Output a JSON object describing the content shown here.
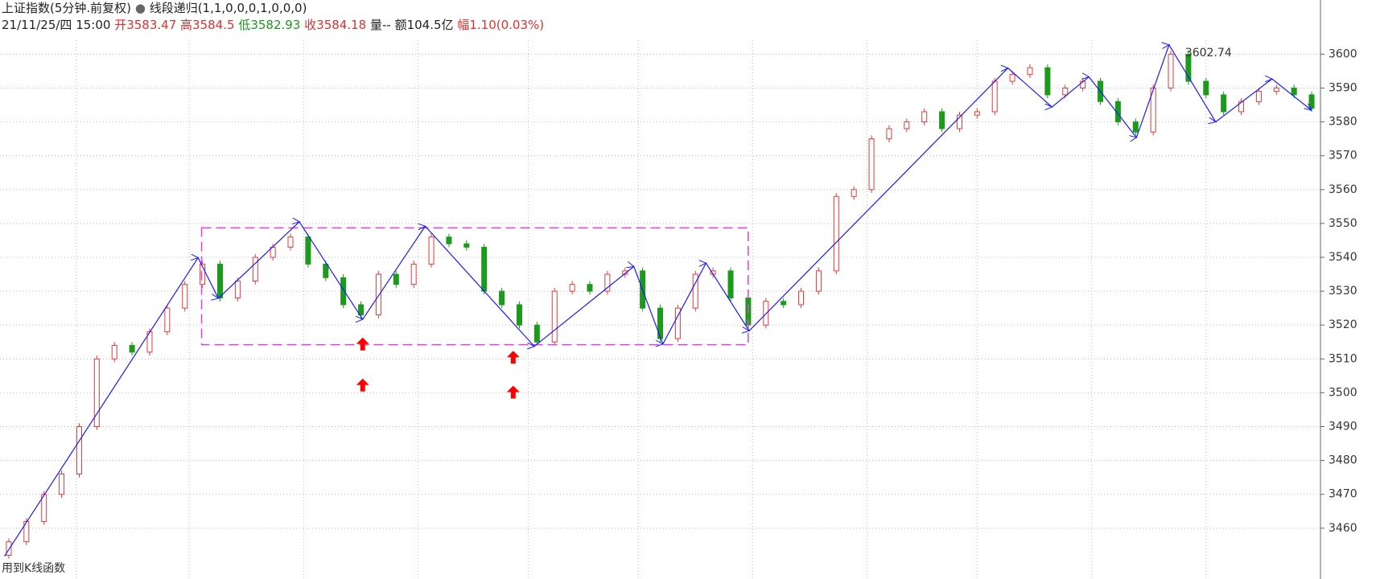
{
  "chart_data": {
    "type": "candlestick",
    "title": "上证指数(5分钟.前复权)",
    "indicator": "线段递归(1,1,0,0,0,1,0,0,0)",
    "info": {
      "datetime": "21/11/25/四 15:00",
      "open_label": "开",
      "open": 3583.47,
      "high_label": "高",
      "high": 3584.5,
      "low_label": "低",
      "low": 3582.93,
      "close_label": "收",
      "close": 3584.18,
      "volume": "量--",
      "amount": "额104.5亿",
      "change_label": "幅",
      "change": "1.10(0.03%)"
    },
    "bottom_note": "用到K线函数",
    "xlim": [
      0,
      300
    ],
    "ylim": [
      3445,
      3616
    ],
    "yticks": [
      3460,
      3470,
      3480,
      3490,
      3500,
      3510,
      3520,
      3530,
      3540,
      3550,
      3560,
      3570,
      3580,
      3590,
      3600
    ],
    "grid": true,
    "up_color": "#e8393a",
    "down_color": "#1c9a1c",
    "x": [
      2,
      6,
      10,
      14,
      18,
      22,
      26,
      30,
      34,
      38,
      42,
      46,
      50,
      54,
      58,
      62,
      66,
      70,
      74,
      78,
      82,
      86,
      90,
      94,
      98,
      102,
      106,
      110,
      114,
      118,
      122,
      126,
      130,
      134,
      138,
      142,
      146,
      150,
      154,
      158,
      162,
      166,
      170,
      174,
      178,
      182,
      186,
      190,
      194,
      198,
      202,
      206,
      210,
      214,
      218,
      222,
      226,
      230,
      234,
      238,
      242,
      246,
      250,
      254,
      258,
      262,
      266,
      270,
      274,
      278,
      282,
      286,
      290,
      294,
      298
    ],
    "open": [
      3452,
      3456,
      3462,
      3470,
      3476,
      3490,
      3510,
      3514,
      3512,
      3518,
      3525,
      3532,
      3538,
      3528,
      3533,
      3540,
      3543,
      3546,
      3538,
      3534,
      3526,
      3523,
      3535,
      3532,
      3538,
      3546,
      3544,
      3543,
      3530,
      3526,
      3520,
      3515,
      3530,
      3532,
      3530,
      3535,
      3536,
      3525,
      3516,
      3525,
      3535,
      3536,
      3528,
      3520,
      3527,
      3526,
      3530,
      3536,
      3558,
      3560,
      3575,
      3578,
      3580,
      3583,
      3578,
      3582,
      3583,
      3592,
      3594,
      3596,
      3588,
      3590,
      3592,
      3586,
      3580,
      3577,
      3590,
      3600,
      3592,
      3588,
      3583,
      3586,
      3589,
      3590,
      3588
    ],
    "high": [
      3457,
      3463,
      3471,
      3477,
      3491,
      3511,
      3515,
      3515,
      3519,
      3526,
      3533,
      3539,
      3539,
      3534,
      3541,
      3544,
      3547,
      3547,
      3539,
      3535,
      3527,
      3536,
      3536,
      3539,
      3547,
      3547,
      3545,
      3544,
      3531,
      3527,
      3521,
      3531,
      3533,
      3533,
      3536,
      3537,
      3537,
      3526,
      3526,
      3536,
      3537,
      3537,
      3529,
      3528,
      3528,
      3531,
      3537,
      3559,
      3561,
      3576,
      3579,
      3581,
      3584,
      3584,
      3583,
      3584,
      3593,
      3595,
      3597,
      3597,
      3591,
      3593,
      3593,
      3587,
      3581,
      3591,
      3601,
      3601,
      3593,
      3589,
      3587,
      3590,
      3591,
      3591,
      3589
    ],
    "low": [
      3451,
      3455,
      3461,
      3469,
      3475,
      3489,
      3509,
      3511,
      3511,
      3517,
      3524,
      3531,
      3527,
      3527,
      3532,
      3539,
      3542,
      3537,
      3533,
      3525,
      3522,
      3522,
      3531,
      3531,
      3537,
      3543,
      3542,
      3529,
      3525,
      3519,
      3514,
      3514,
      3529,
      3529,
      3529,
      3534,
      3524,
      3515,
      3515,
      3524,
      3534,
      3527,
      3519,
      3519,
      3525,
      3525,
      3529,
      3535,
      3557,
      3559,
      3574,
      3577,
      3579,
      3577,
      3577,
      3581,
      3582,
      3591,
      3593,
      3587,
      3587,
      3589,
      3585,
      3579,
      3576,
      3576,
      3589,
      3591,
      3587,
      3582,
      3582,
      3585,
      3588,
      3587,
      3583
    ],
    "close": [
      3456,
      3462,
      3470,
      3476,
      3490,
      3510,
      3514,
      3512,
      3518,
      3525,
      3532,
      3538,
      3528,
      3533,
      3540,
      3543,
      3546,
      3538,
      3534,
      3526,
      3523,
      3535,
      3532,
      3538,
      3546,
      3544,
      3543,
      3530,
      3526,
      3520,
      3515,
      3530,
      3532,
      3530,
      3535,
      3536,
      3525,
      3516,
      3525,
      3535,
      3536,
      3528,
      3520,
      3527,
      3526,
      3530,
      3536,
      3558,
      3560,
      3575,
      3578,
      3580,
      3583,
      3578,
      3582,
      3583,
      3592,
      3594,
      3596,
      3588,
      3590,
      3592,
      3586,
      3580,
      3577,
      3590,
      3600,
      3592,
      3588,
      3583,
      3586,
      3589,
      3590,
      3588,
      3584
    ],
    "zigzag": {
      "color": "#1a1aff",
      "x": [
        1,
        45,
        49.6,
        68,
        82.4,
        96.6,
        121.4,
        144,
        150.6,
        160.4,
        170.2,
        229,
        239,
        247.4,
        258.2,
        265.6,
        276.2,
        289,
        298
      ],
      "values": [
        3451.7,
        3539.9,
        3527.9,
        3550.5,
        3521.7,
        3549.2,
        3513.7,
        3537.3,
        3514.4,
        3538.3,
        3518.3,
        3595.9,
        3584.4,
        3593.3,
        3575.4,
        3602.74,
        3580.0,
        3592.7,
        3583.4
      ]
    },
    "peak_label": "3602.74",
    "box": {
      "color": "#e040e0",
      "x": [
        45.8,
        170
      ],
      "values": [
        3548.7,
        3514.2
      ]
    },
    "arrows": {
      "color": "#ff0000",
      "x": [
        82.4,
        82.4,
        116.6,
        116.6
      ],
      "values": [
        3514.4,
        3502.3,
        3510.5,
        3500.2
      ]
    }
  }
}
